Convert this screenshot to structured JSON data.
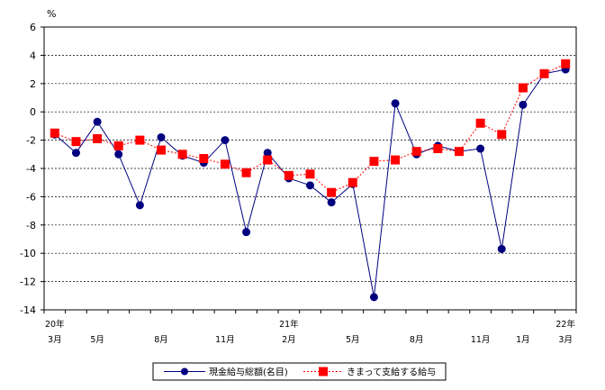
{
  "chart_data": {
    "type": "line",
    "unit_label": "%",
    "ylim": [
      -14,
      6
    ],
    "y_ticks": [
      6,
      4,
      2,
      0,
      -2,
      -4,
      -6,
      -8,
      -10,
      -12,
      -14
    ],
    "grid": "horizontal dashed",
    "x_count": 25,
    "x_labels": [
      {
        "index": 0,
        "lines": [
          "20年",
          "3月"
        ]
      },
      {
        "index": 2,
        "lines": [
          "5月"
        ]
      },
      {
        "index": 5,
        "lines": [
          "8月"
        ]
      },
      {
        "index": 8,
        "lines": [
          "11月"
        ]
      },
      {
        "index": 11,
        "lines": [
          "21年",
          "2月"
        ]
      },
      {
        "index": 14,
        "lines": [
          "5月"
        ]
      },
      {
        "index": 17,
        "lines": [
          "8月"
        ]
      },
      {
        "index": 20,
        "lines": [
          "11月"
        ]
      },
      {
        "index": 22,
        "lines": [
          "1月"
        ]
      },
      {
        "index": 24,
        "lines": [
          "22年",
          "3月"
        ]
      }
    ],
    "series": [
      {
        "name": "現金給与総額(名目)",
        "color": "#000080",
        "marker": "circle",
        "line_style": "solid",
        "values": [
          -1.6,
          -2.9,
          -0.7,
          -3.0,
          -6.6,
          -1.8,
          -3.1,
          -3.6,
          -2.0,
          -8.5,
          -2.9,
          -4.7,
          -5.2,
          -6.4,
          -5.1,
          -13.1,
          0.6,
          -3.0,
          -2.4,
          -2.8,
          -2.6,
          -9.7,
          0.5,
          2.7,
          3.0
        ]
      },
      {
        "name": "きまって支給する給与",
        "color": "#ff0000",
        "marker": "square",
        "line_style": "dashed",
        "values": [
          -1.5,
          -2.1,
          -1.9,
          -2.4,
          -2.0,
          -2.7,
          -3.0,
          -3.3,
          -3.7,
          -4.3,
          -3.4,
          -4.5,
          -4.4,
          -5.7,
          -5.0,
          -3.5,
          -3.4,
          -2.8,
          -2.6,
          -2.8,
          -0.8,
          -1.6,
          1.7,
          2.7,
          3.4
        ]
      }
    ]
  }
}
